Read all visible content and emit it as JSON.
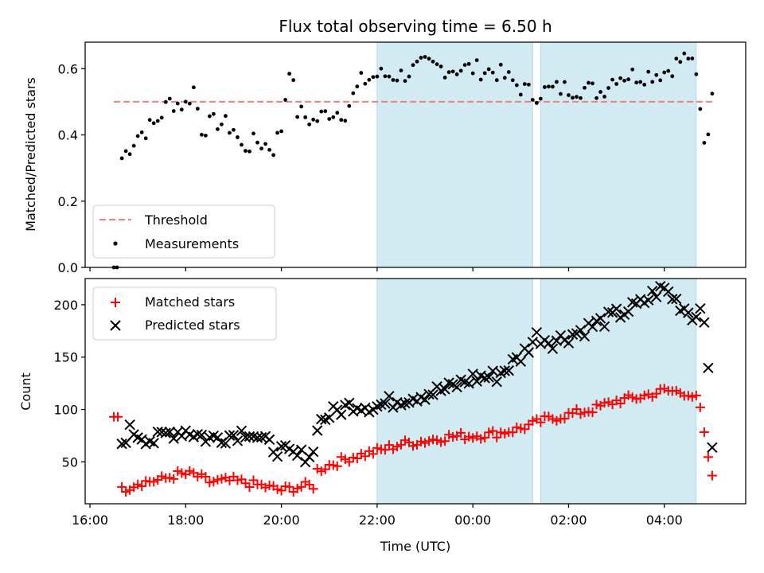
{
  "chart_data": {
    "title": "Flux total observing time = 6.50 h",
    "xlabel": "Time (UTC)",
    "x_tick_labels": [
      "16:00",
      "18:00",
      "20:00",
      "22:00",
      "00:00",
      "02:00",
      "04:00"
    ],
    "x_tick_hours": [
      0,
      2,
      4,
      6,
      8,
      10,
      12
    ],
    "x_range_hours_since_16": [
      -0.1,
      13.7
    ],
    "shaded_intervals_utc": [
      [
        "22:00",
        "01:15"
      ],
      [
        "01:25",
        "04:40"
      ]
    ],
    "colors": {
      "threshold": "#f08080",
      "measurements": "#000000",
      "matched": "#ff0000",
      "predicted": "#000000",
      "shade": "#add8e6"
    },
    "panels": [
      {
        "type": "scatter",
        "ylabel": "Matched/Predicted stars",
        "ylim": [
          0,
          0.68
        ],
        "y_ticks": [
          0,
          0.2,
          0.4,
          0.6
        ],
        "y_tick_labels": [
          "0.0",
          "0.2",
          "0.4",
          "0.6"
        ],
        "legend": {
          "placement": "lower-left",
          "entries": [
            "Threshold",
            "Measurements"
          ]
        },
        "threshold": {
          "name": "Threshold",
          "y": 0.5,
          "x_from": "16:30",
          "x_to": "05:00"
        },
        "measurements": {
          "name": "Measurements",
          "anchors": [
            [
              "16:30",
              0.0
            ],
            [
              "16:40",
              0.33
            ],
            [
              "17:00",
              0.4
            ],
            [
              "17:20",
              0.43
            ],
            [
              "17:40",
              0.5
            ],
            [
              "18:00",
              0.49
            ],
            [
              "18:10",
              0.54
            ],
            [
              "18:20",
              0.42
            ],
            [
              "18:40",
              0.44
            ],
            [
              "19:00",
              0.42
            ],
            [
              "19:10",
              0.36
            ],
            [
              "19:30",
              0.38
            ],
            [
              "19:50",
              0.36
            ],
            [
              "20:00",
              0.42
            ],
            [
              "20:10",
              0.61
            ],
            [
              "20:20",
              0.47
            ],
            [
              "20:40",
              0.44
            ],
            [
              "21:00",
              0.47
            ],
            [
              "21:20",
              0.47
            ],
            [
              "21:40",
              0.56
            ],
            [
              "22:00",
              0.58
            ],
            [
              "22:30",
              0.58
            ],
            [
              "23:00",
              0.61
            ],
            [
              "23:30",
              0.6
            ],
            [
              "00:00",
              0.6
            ],
            [
              "00:30",
              0.59
            ],
            [
              "00:50",
              0.56
            ],
            [
              "01:15",
              0.52
            ],
            [
              "01:25",
              0.53
            ],
            [
              "01:50",
              0.54
            ],
            [
              "02:20",
              0.54
            ],
            [
              "02:40",
              0.53
            ],
            [
              "03:00",
              0.58
            ],
            [
              "03:30",
              0.58
            ],
            [
              "04:00",
              0.59
            ],
            [
              "04:30",
              0.64
            ],
            [
              "04:40",
              0.57
            ],
            [
              "04:45",
              0.47
            ],
            [
              "04:50",
              0.39
            ],
            [
              "04:55",
              0.41
            ],
            [
              "05:00",
              0.55
            ]
          ]
        }
      },
      {
        "type": "scatter",
        "ylabel": "Count",
        "ylim": [
          10,
          225
        ],
        "y_ticks": [
          50,
          100,
          150,
          200
        ],
        "y_tick_labels": [
          "50",
          "100",
          "150",
          "200"
        ],
        "legend": {
          "placement": "top-left",
          "entries": [
            "Matched stars",
            "Predicted stars"
          ]
        },
        "matched": {
          "name": "Matched stars",
          "anchors": [
            [
              "16:30",
              93
            ],
            [
              "16:40",
              23
            ],
            [
              "17:00",
              30
            ],
            [
              "17:30",
              33
            ],
            [
              "17:50",
              38
            ],
            [
              "18:10",
              38
            ],
            [
              "18:30",
              31
            ],
            [
              "19:00",
              32
            ],
            [
              "19:30",
              28
            ],
            [
              "20:00",
              23
            ],
            [
              "20:30",
              27
            ],
            [
              "20:40",
              27
            ],
            [
              "20:45",
              42
            ],
            [
              "21:00",
              47
            ],
            [
              "21:30",
              55
            ],
            [
              "22:00",
              60
            ],
            [
              "22:30",
              67
            ],
            [
              "23:00",
              70
            ],
            [
              "23:30",
              74
            ],
            [
              "00:00",
              75
            ],
            [
              "00:30",
              77
            ],
            [
              "01:00",
              82
            ],
            [
              "01:30",
              90
            ],
            [
              "02:00",
              95
            ],
            [
              "02:30",
              100
            ],
            [
              "03:00",
              108
            ],
            [
              "03:30",
              112
            ],
            [
              "04:00",
              118
            ],
            [
              "04:30",
              116
            ],
            [
              "04:40",
              110
            ],
            [
              "04:45",
              100
            ],
            [
              "04:50",
              75
            ],
            [
              "04:55",
              55
            ],
            [
              "05:00",
              34
            ]
          ]
        },
        "predicted": {
          "name": "Predicted stars",
          "anchors": [
            [
              "16:40",
              68
            ],
            [
              "16:50",
              80
            ],
            [
              "17:20",
              70
            ],
            [
              "17:40",
              78
            ],
            [
              "18:00",
              80
            ],
            [
              "18:30",
              72
            ],
            [
              "19:00",
              76
            ],
            [
              "19:20",
              80
            ],
            [
              "19:40",
              68
            ],
            [
              "20:00",
              60
            ],
            [
              "20:20",
              55
            ],
            [
              "20:40",
              58
            ],
            [
              "20:45",
              86
            ],
            [
              "21:00",
              95
            ],
            [
              "21:30",
              105
            ],
            [
              "22:00",
              103
            ],
            [
              "22:30",
              110
            ],
            [
              "23:00",
              115
            ],
            [
              "23:30",
              120
            ],
            [
              "00:00",
              130
            ],
            [
              "00:30",
              132
            ],
            [
              "01:00",
              150
            ],
            [
              "01:20",
              170
            ],
            [
              "01:40",
              165
            ],
            [
              "02:00",
              170
            ],
            [
              "02:30",
              180
            ],
            [
              "03:00",
              190
            ],
            [
              "03:30",
              200
            ],
            [
              "03:50",
              212
            ],
            [
              "04:00",
              215
            ],
            [
              "04:20",
              200
            ],
            [
              "04:40",
              188
            ],
            [
              "04:45",
              200
            ],
            [
              "04:50",
              190
            ],
            [
              "04:55",
              133
            ],
            [
              "05:00",
              62
            ]
          ]
        }
      }
    ]
  }
}
